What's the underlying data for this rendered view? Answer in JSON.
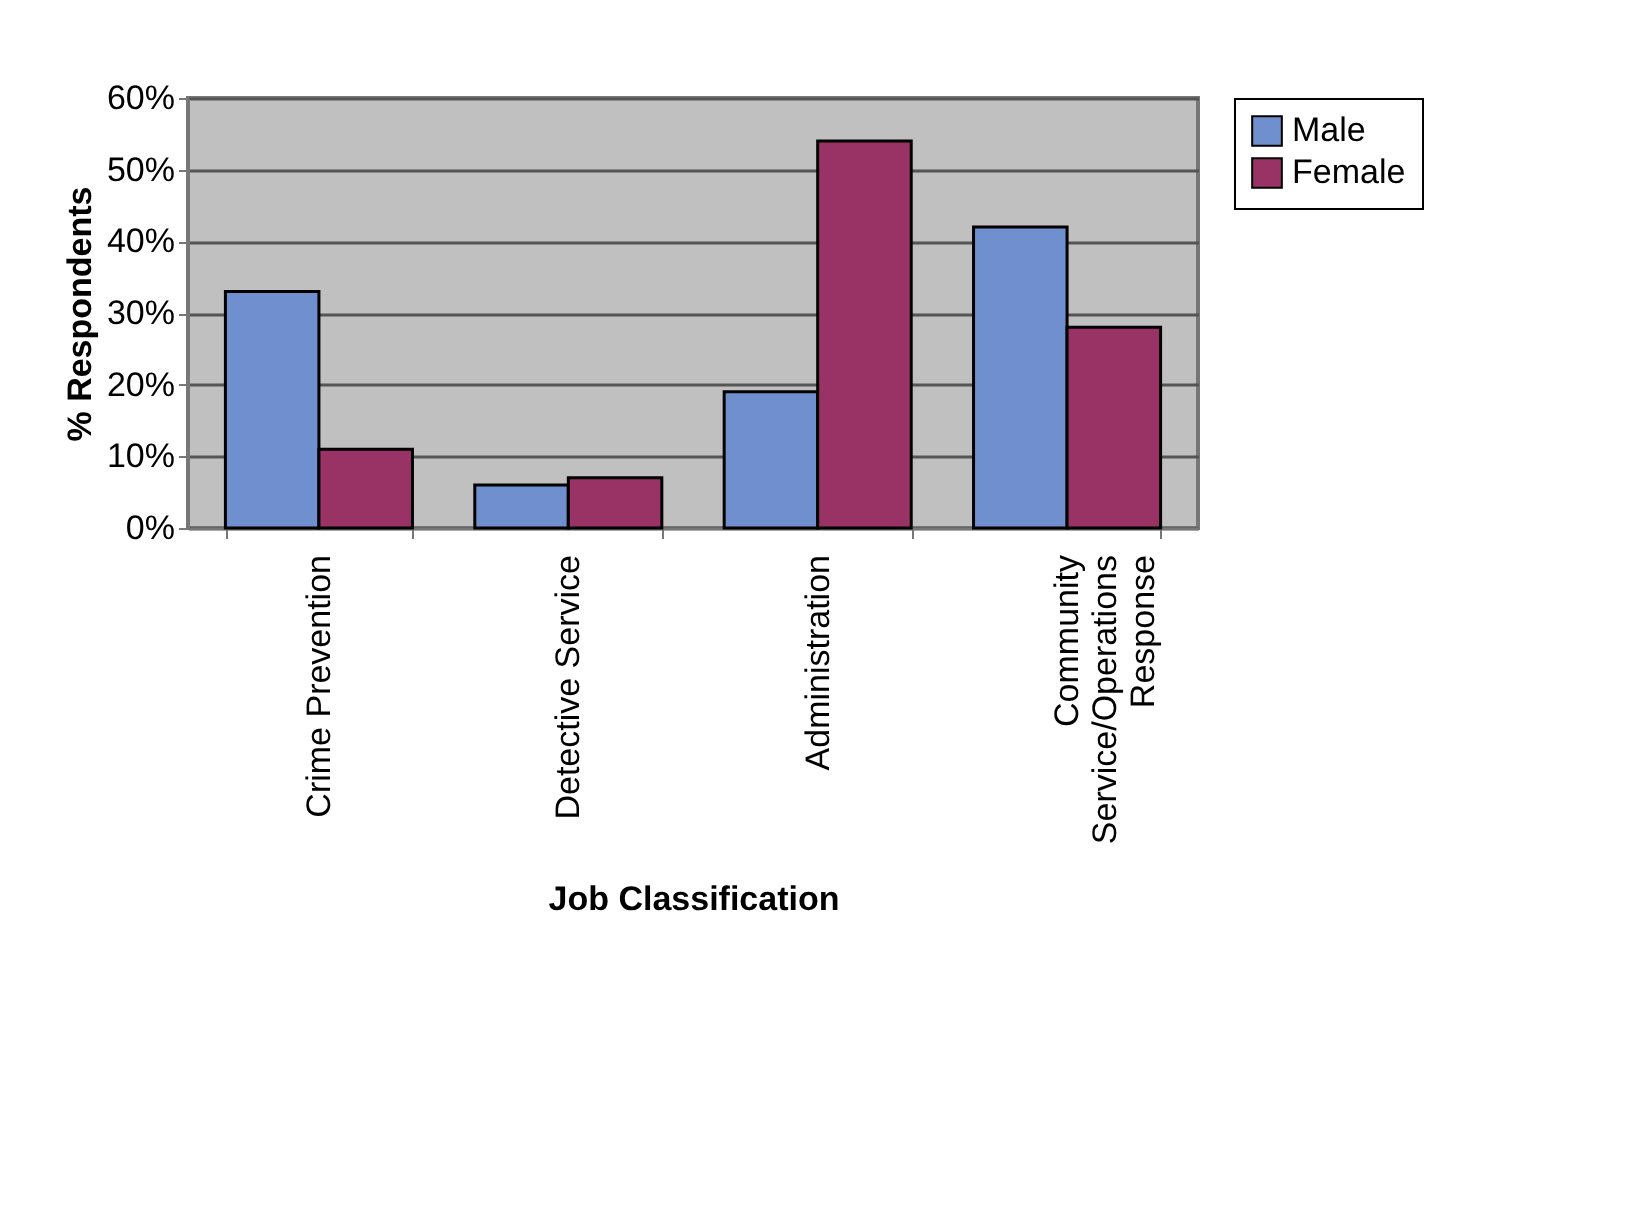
{
  "chart_data": {
    "type": "bar",
    "xlabel": "Job Classification",
    "ylabel": "% Respondents",
    "categories": [
      "Crime Prevention",
      "Detective Service",
      "Administration",
      "Community Service/Operations Response"
    ],
    "series": [
      {
        "name": "Male",
        "color": "#6f8fcf",
        "values": [
          33,
          6,
          19,
          42
        ]
      },
      {
        "name": "Female",
        "color": "#993366",
        "values": [
          11,
          7,
          54,
          28
        ]
      }
    ],
    "ylim": [
      0,
      60
    ],
    "yticks": [
      {
        "value": 0,
        "label": "0%"
      },
      {
        "value": 10,
        "label": "10%"
      },
      {
        "value": 20,
        "label": "20%"
      },
      {
        "value": 30,
        "label": "30%"
      },
      {
        "value": 40,
        "label": "40%"
      },
      {
        "value": 50,
        "label": "50%"
      },
      {
        "value": 60,
        "label": "60%"
      }
    ],
    "grid": "y",
    "legend": "right"
  }
}
